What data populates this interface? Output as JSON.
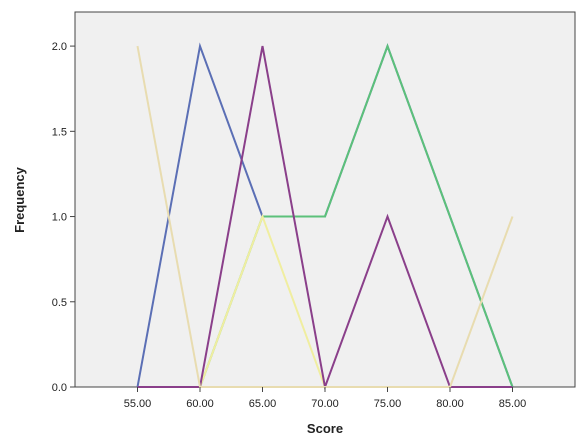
{
  "chart_data": {
    "type": "line",
    "title": "",
    "xlabel": "Score",
    "ylabel": "Frequency",
    "x": [
      55,
      60,
      65,
      70,
      75,
      80,
      85
    ],
    "x_tick_labels": [
      "55.00",
      "60.00",
      "65.00",
      "70.00",
      "75.00",
      "80.00",
      "85.00"
    ],
    "y_ticks": [
      0,
      0.5,
      1,
      1.5,
      2
    ],
    "y_tick_labels": [
      "0.0",
      "0.5",
      "1.0",
      "1.5",
      "2.0"
    ],
    "xlim": [
      50,
      90
    ],
    "ylim": [
      0,
      2.2
    ],
    "grid": false,
    "legend": "none",
    "plot_background": "#f0f0f0",
    "series": [
      {
        "color": "#5b6fb5",
        "values": [
          0,
          2,
          1,
          1,
          2,
          1,
          0
        ]
      },
      {
        "color": "#5cc17a",
        "values": [
          0,
          0,
          1,
          1,
          2,
          1,
          0
        ]
      },
      {
        "color": "#f0eea0",
        "values": [
          0,
          0,
          1,
          0,
          0,
          0,
          0
        ]
      },
      {
        "color": "#8a3f8a",
        "values": [
          0,
          0,
          2,
          0,
          1,
          0,
          0
        ]
      },
      {
        "color": "#e8dcb0",
        "values": [
          2,
          0,
          0,
          0,
          0,
          0,
          1
        ]
      }
    ]
  }
}
